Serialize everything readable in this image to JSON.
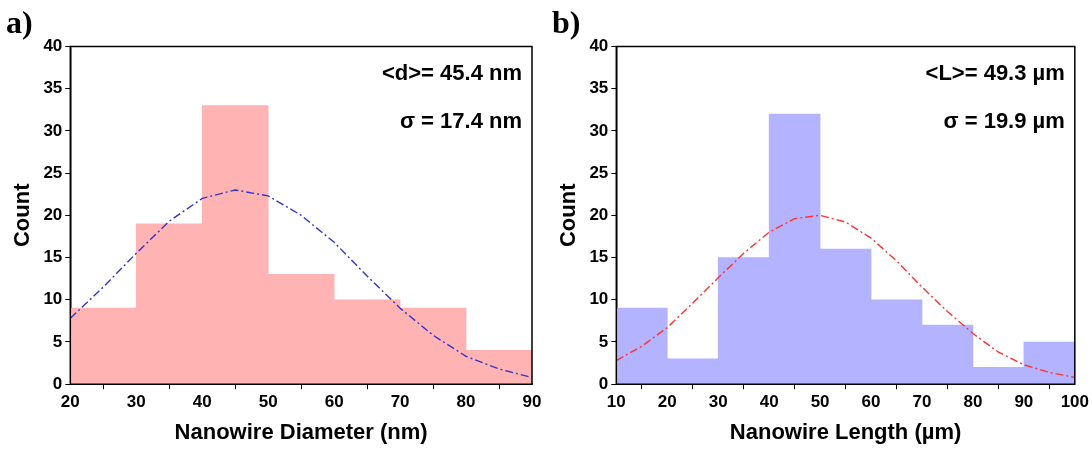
{
  "chart_data": [
    {
      "type": "histogram",
      "title": "a)",
      "xlabel": "Nanowire Diameter (nm)",
      "ylabel": "Count",
      "annotations": [
        "<d>= 45.4 nm",
        "σ = 17.4 nm"
      ],
      "xlim": [
        20,
        90
      ],
      "xticks": [
        20,
        30,
        40,
        50,
        60,
        70,
        80,
        90
      ],
      "ylim": [
        0,
        40
      ],
      "yticks": [
        0,
        5,
        10,
        15,
        20,
        25,
        30,
        35,
        40
      ],
      "grid": false,
      "legend": false,
      "series": [
        {
          "type": "histogram",
          "color": "#ffb3b3",
          "bins": [
            20,
            30,
            40,
            50,
            60,
            70,
            80,
            90
          ],
          "values": [
            9,
            19,
            33,
            13,
            10,
            9,
            4
          ]
        },
        {
          "type": "line",
          "color": "#3333cc",
          "line_style": "dashed",
          "marker": "none",
          "x": [
            20,
            25,
            30,
            35,
            40,
            45,
            50,
            55,
            60,
            65,
            70,
            75,
            80,
            85,
            90
          ],
          "values": [
            7.8,
            11.5,
            15.5,
            19.3,
            22,
            23,
            22.3,
            20,
            16.8,
            12.8,
            9,
            5.8,
            3.3,
            1.8,
            0.8
          ]
        }
      ]
    },
    {
      "type": "histogram",
      "title": "b)",
      "xlabel": "Nanowire Length (µm)",
      "ylabel": "Count",
      "annotations": [
        "<L>= 49.3 µm",
        "σ = 19.9 µm"
      ],
      "xlim": [
        10,
        100
      ],
      "xticks": [
        10,
        20,
        30,
        40,
        50,
        60,
        70,
        80,
        90,
        100
      ],
      "ylim": [
        0,
        40
      ],
      "yticks": [
        0,
        5,
        10,
        15,
        20,
        25,
        30,
        35,
        40
      ],
      "grid": false,
      "legend": false,
      "series": [
        {
          "type": "histogram",
          "color": "#b3b3ff",
          "bins": [
            10,
            20,
            30,
            40,
            50,
            60,
            70,
            80,
            90,
            100
          ],
          "values": [
            9,
            3,
            15,
            32,
            16,
            10,
            7,
            2,
            5
          ]
        },
        {
          "type": "line",
          "color": "#ff3333",
          "line_style": "dashed",
          "marker": "none",
          "x": [
            10,
            15,
            20,
            25,
            30,
            35,
            40,
            45,
            50,
            55,
            60,
            65,
            70,
            75,
            80,
            85,
            90,
            95,
            100
          ],
          "values": [
            2.8,
            4.5,
            6.7,
            9.6,
            12.6,
            15.5,
            18,
            19.6,
            20,
            19.2,
            17.3,
            14.6,
            11.5,
            8.6,
            6,
            3.8,
            2.3,
            1.4,
            0.8
          ]
        }
      ]
    }
  ]
}
